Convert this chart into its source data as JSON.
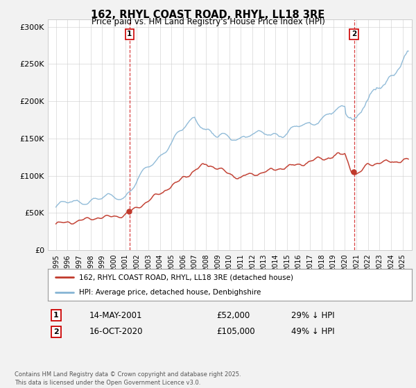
{
  "title": "162, RHYL COAST ROAD, RHYL, LL18 3RE",
  "subtitle": "Price paid vs. HM Land Registry's House Price Index (HPI)",
  "ylim": [
    0,
    310000
  ],
  "yticks": [
    0,
    50000,
    100000,
    150000,
    200000,
    250000,
    300000
  ],
  "ytick_labels": [
    "£0",
    "£50K",
    "£100K",
    "£150K",
    "£200K",
    "£250K",
    "£300K"
  ],
  "legend_entry1": "162, RHYL COAST ROAD, RHYL, LL18 3RE (detached house)",
  "legend_entry2": "HPI: Average price, detached house, Denbighshire",
  "marker1_label": "1",
  "marker1_date": "14-MAY-2001",
  "marker1_price": "£52,000",
  "marker1_hpi": "29% ↓ HPI",
  "marker1_year": 2001.37,
  "marker1_value": 52000,
  "marker2_label": "2",
  "marker2_date": "16-OCT-2020",
  "marker2_price": "£105,000",
  "marker2_hpi": "49% ↓ HPI",
  "marker2_year": 2020.79,
  "marker2_value": 105000,
  "footer": "Contains HM Land Registry data © Crown copyright and database right 2025.\nThis data is licensed under the Open Government Licence v3.0.",
  "red_color": "#c0392b",
  "blue_color": "#85b4d4",
  "marker_color": "#cc0000",
  "bg_color": "#f2f2f2",
  "plot_bg_color": "#ffffff",
  "grid_color": "#cccccc"
}
